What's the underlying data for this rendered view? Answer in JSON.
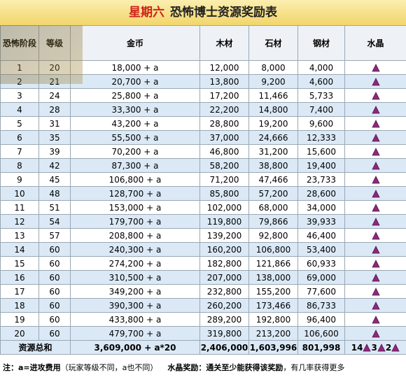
{
  "header": {
    "title_day": "星期六",
    "title_rest": "恐怖博士资源奖励表"
  },
  "table": {
    "columns": [
      "恐怖阶段",
      "等级",
      "金币",
      "木材",
      "石材",
      "钢材",
      "水晶"
    ],
    "rows": [
      [
        "1",
        "20",
        "18,000 + a",
        "12,000",
        "8,000",
        "4,000"
      ],
      [
        "2",
        "21",
        "20,700 + a",
        "13,800",
        "9,200",
        "4,600"
      ],
      [
        "3",
        "24",
        "25,800 + a",
        "17,200",
        "11,466",
        "5,733"
      ],
      [
        "4",
        "28",
        "33,300 + a",
        "22,200",
        "14,800",
        "7,400"
      ],
      [
        "5",
        "31",
        "43,200 + a",
        "28,800",
        "19,200",
        "9,600"
      ],
      [
        "6",
        "35",
        "55,500 + a",
        "37,000",
        "24,666",
        "12,333"
      ],
      [
        "7",
        "39",
        "70,200 + a",
        "46,800",
        "31,200",
        "15,600"
      ],
      [
        "8",
        "42",
        "87,300 + a",
        "58,200",
        "38,800",
        "19,400"
      ],
      [
        "9",
        "45",
        "106,800 + a",
        "71,200",
        "47,466",
        "23,733"
      ],
      [
        "10",
        "48",
        "128,700 + a",
        "85,800",
        "57,200",
        "28,600"
      ],
      [
        "11",
        "51",
        "153,000 + a",
        "102,000",
        "68,000",
        "34,000"
      ],
      [
        "12",
        "54",
        "179,700 + a",
        "119,800",
        "79,866",
        "39,933"
      ],
      [
        "13",
        "57",
        "208,800 + a",
        "139,200",
        "92,800",
        "46,400"
      ],
      [
        "14",
        "60",
        "240,300 + a",
        "160,200",
        "106,800",
        "53,400"
      ],
      [
        "15",
        "60",
        "274,200 + a",
        "182,800",
        "121,866",
        "60,933"
      ],
      [
        "16",
        "60",
        "310,500 + a",
        "207,000",
        "138,000",
        "69,000"
      ],
      [
        "17",
        "60",
        "349,200 + a",
        "232,800",
        "155,200",
        "77,600"
      ],
      [
        "18",
        "60",
        "390,300 + a",
        "260,200",
        "173,466",
        "86,733"
      ],
      [
        "19",
        "60",
        "433,800 + a",
        "289,200",
        "192,800",
        "96,400"
      ],
      [
        "20",
        "60",
        "479,700 + a",
        "319,800",
        "213,200",
        "106,600"
      ]
    ],
    "total": {
      "label": "资源总和",
      "values": [
        "3,609,000 + a*20",
        "2,406,000",
        "1,603,996",
        "801,998"
      ],
      "crystals": [
        "14",
        "3",
        "2"
      ]
    }
  },
  "footer": {
    "note_bold": "注：a=进攻费用",
    "note": "（玩家等级不同，a也不同）",
    "reward_bold": "水晶奖励：通关至少能获得该奖励",
    "reward": "，有几率获得更多"
  }
}
